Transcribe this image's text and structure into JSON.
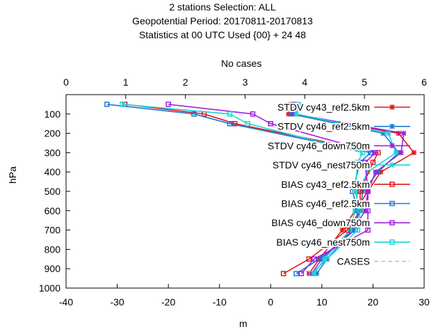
{
  "chart_data": {
    "type": "line",
    "title_lines": [
      "2 stations Selection: ALL",
      "Geopotential  Period: 20170811-20170813",
      "Statistics at 00 UTC  Used {00} + 24 48"
    ],
    "xlabel": "m",
    "x2label": "No cases",
    "ylabel": "hPa",
    "xlim": [
      -40,
      30
    ],
    "x2lim": [
      0,
      6
    ],
    "ylim": [
      1000,
      0
    ],
    "xticks": [
      "-40",
      "-30",
      "-20",
      "-10",
      "0",
      "10",
      "20",
      "30"
    ],
    "x2ticks": [
      "0",
      "1",
      "2",
      "3",
      "4",
      "5",
      "6"
    ],
    "yticks": [
      "100",
      "200",
      "300",
      "400",
      "500",
      "600",
      "700",
      "800",
      "900",
      "1000"
    ],
    "grid": false,
    "legend_position": "top-right",
    "series": [
      {
        "name": "STDV cy43_ref2.5km",
        "color": "#e0191a",
        "marker": "x",
        "x": [
          4.0,
          3.5,
          25.0,
          28.0,
          21.5,
          19.0,
          16.5,
          14.0,
          9.5,
          7.5
        ],
        "y": [
          50,
          100,
          200,
          300,
          400,
          500,
          600,
          700,
          850,
          925
        ]
      },
      {
        "name": "STDV cy46_ref2.5km",
        "color": "#1c78d6",
        "marker": "x",
        "x": [
          4.5,
          4.0,
          22.0,
          25.0,
          21.0,
          18.0,
          17.5,
          16.0,
          11.0,
          9.0
        ],
        "y": [
          50,
          100,
          200,
          300,
          400,
          500,
          600,
          700,
          850,
          925
        ]
      },
      {
        "name": "STDV cy46_down750m",
        "color": "#a020e0",
        "marker": "x",
        "x": [
          5.0,
          4.5,
          26.0,
          25.5,
          20.5,
          19.0,
          18.5,
          16.0,
          10.0,
          8.0
        ],
        "y": [
          50,
          100,
          200,
          300,
          400,
          500,
          600,
          700,
          850,
          925
        ]
      },
      {
        "name": "STDV cy46_nest750m",
        "color": "#1cd6d6",
        "marker": "x",
        "x": [
          5.5,
          5.0,
          23.0,
          24.5,
          19.0,
          17.0,
          16.5,
          15.5,
          10.5,
          8.5
        ],
        "y": [
          50,
          100,
          200,
          300,
          400,
          500,
          600,
          700,
          850,
          925
        ]
      },
      {
        "name": "BIAS cy43_ref2.5km",
        "color": "#e0191a",
        "marker": "square",
        "x": [
          -28.5,
          -13.0,
          -7.0,
          21.0,
          20.0,
          17.5,
          17.5,
          15.0,
          7.5,
          2.5
        ],
        "y": [
          50,
          100,
          150,
          300,
          350,
          500,
          600,
          700,
          850,
          925
        ]
      },
      {
        "name": "BIAS cy46_ref2.5km",
        "color": "#1c78d6",
        "marker": "square",
        "x": [
          -32.0,
          -15.0,
          -8.0,
          19.5,
          17.5,
          16.0,
          17.0,
          16.5,
          9.5,
          5.0
        ],
        "y": [
          50,
          100,
          150,
          300,
          350,
          500,
          600,
          700,
          850,
          925
        ]
      },
      {
        "name": "BIAS cy46_down750m",
        "color": "#a020e0",
        "marker": "square",
        "x": [
          -20.0,
          -3.5,
          0.0,
          20.5,
          18.5,
          19.0,
          19.0,
          19.0,
          8.5,
          6.0
        ],
        "y": [
          50,
          100,
          150,
          300,
          350,
          500,
          600,
          700,
          850,
          925
        ]
      },
      {
        "name": "BIAS cy46_nest750m",
        "color": "#1cd6d6",
        "marker": "square",
        "x": [
          -29.0,
          -8.0,
          -4.5,
          18.0,
          17.0,
          16.5,
          17.5,
          17.0,
          11.0,
          8.0
        ],
        "y": [
          50,
          100,
          150,
          300,
          350,
          500,
          600,
          700,
          850,
          925
        ]
      },
      {
        "name": "CASES",
        "color": "#a0a0a0",
        "dashed": true,
        "axis": "x2",
        "x": [],
        "y": []
      }
    ]
  }
}
